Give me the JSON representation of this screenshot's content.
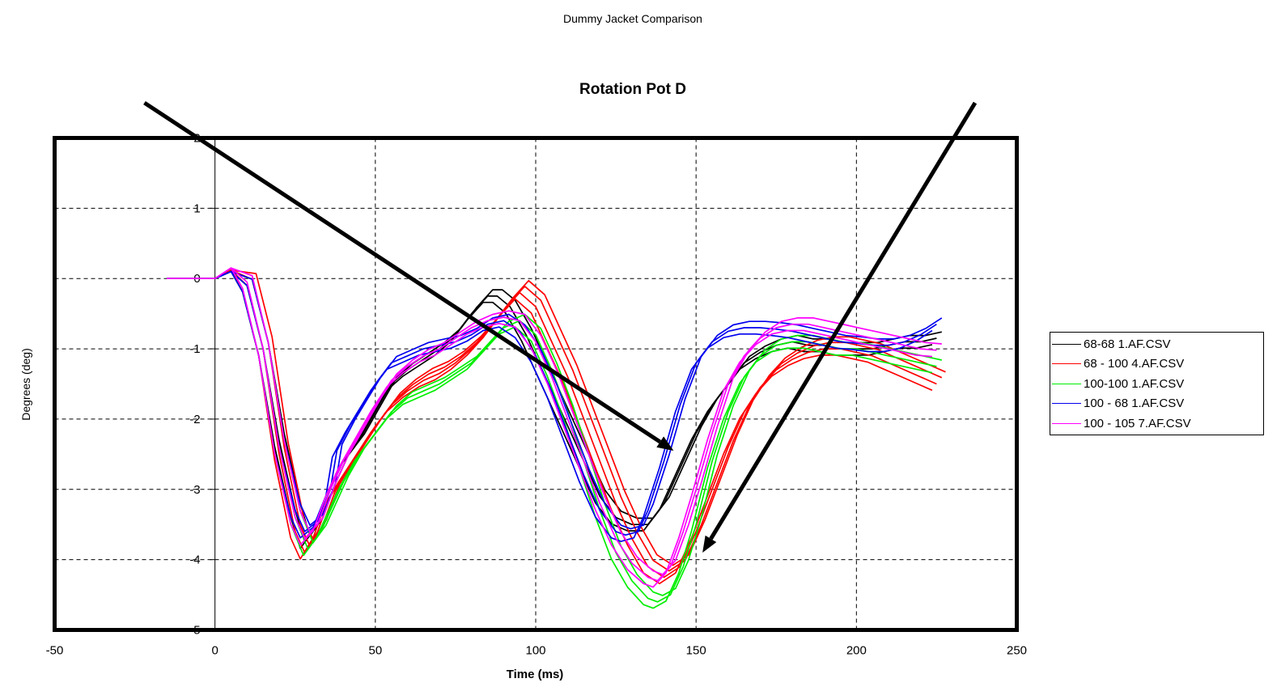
{
  "page_title": "Dummy Jacket Comparison",
  "chart_data": {
    "type": "line",
    "title": "Rotation Pot D",
    "xlabel": "Time (ms)",
    "ylabel": "Degrees (deg)",
    "xlim": [
      -50,
      250
    ],
    "ylim": [
      -5,
      2
    ],
    "xticks": [
      -50,
      0,
      50,
      100,
      150,
      200,
      250
    ],
    "yticks": [
      2,
      1,
      0,
      -1,
      -2,
      -3,
      -4,
      -5
    ],
    "grid": true,
    "legend_position": "right",
    "series": [
      {
        "name": "68-68 1.AF.CSV",
        "color": "#000000",
        "count": 3,
        "x": [
          -15,
          0,
          5,
          10,
          15,
          20,
          25,
          28,
          32,
          36,
          40,
          45,
          50,
          55,
          60,
          65,
          70,
          75,
          80,
          85,
          88,
          92,
          97,
          102,
          108,
          115,
          120,
          125,
          130,
          135,
          140,
          145,
          150,
          155,
          160,
          165,
          170,
          175,
          180,
          185,
          190,
          195,
          200,
          205,
          210,
          215,
          220,
          225
        ],
        "y": [
          0,
          0,
          0.1,
          -0.1,
          -1.0,
          -2.3,
          -3.3,
          -3.75,
          -3.5,
          -3.0,
          -2.6,
          -2.3,
          -1.9,
          -1.5,
          -1.3,
          -1.15,
          -1.0,
          -0.8,
          -0.5,
          -0.25,
          -0.25,
          -0.4,
          -0.8,
          -1.3,
          -1.9,
          -2.6,
          -3.1,
          -3.4,
          -3.5,
          -3.5,
          -3.2,
          -2.7,
          -2.2,
          -1.8,
          -1.5,
          -1.2,
          -1.05,
          -0.95,
          -0.9,
          -0.95,
          -0.95,
          -1.0,
          -1.0,
          -1.0,
          -0.95,
          -0.9,
          -0.9,
          -0.85
        ]
      },
      {
        "name": "68 - 100 4.AF.CSV",
        "color": "#ff0000",
        "count": 4,
        "x": [
          -15,
          0,
          5,
          10,
          15,
          20,
          25,
          28,
          32,
          36,
          40,
          45,
          50,
          55,
          60,
          65,
          70,
          75,
          80,
          85,
          90,
          95,
          100,
          105,
          110,
          115,
          120,
          125,
          130,
          135,
          140,
          145,
          150,
          155,
          160,
          165,
          170,
          175,
          180,
          185,
          190,
          195,
          200,
          205,
          210,
          215,
          220,
          225
        ],
        "y": [
          0,
          0,
          0.12,
          -0.1,
          -1.0,
          -2.5,
          -3.6,
          -3.9,
          -3.6,
          -3.1,
          -2.8,
          -2.45,
          -2.1,
          -1.8,
          -1.6,
          -1.45,
          -1.35,
          -1.2,
          -1.0,
          -0.75,
          -0.45,
          -0.2,
          -0.4,
          -0.9,
          -1.4,
          -2.0,
          -2.6,
          -3.2,
          -3.7,
          -4.1,
          -4.25,
          -4.1,
          -3.6,
          -3.0,
          -2.4,
          -1.9,
          -1.55,
          -1.3,
          -1.15,
          -1.05,
          -1.0,
          -1.0,
          -1.05,
          -1.1,
          -1.2,
          -1.3,
          -1.4,
          -1.5
        ]
      },
      {
        "name": "100-100 1.AF.CSV",
        "color": "#00ee00",
        "count": 3,
        "x": [
          -15,
          0,
          5,
          10,
          15,
          20,
          25,
          29,
          33,
          37,
          40,
          45,
          50,
          55,
          60,
          65,
          70,
          75,
          80,
          85,
          90,
          95,
          100,
          105,
          110,
          115,
          120,
          125,
          130,
          135,
          138,
          142,
          146,
          150,
          155,
          160,
          165,
          170,
          175,
          180,
          185,
          190,
          195,
          200,
          205,
          210,
          215,
          220,
          225
        ],
        "y": [
          0,
          0,
          0.1,
          -0.1,
          -1.0,
          -2.4,
          -3.4,
          -3.85,
          -3.6,
          -3.2,
          -2.9,
          -2.5,
          -2.2,
          -1.9,
          -1.7,
          -1.6,
          -1.5,
          -1.35,
          -1.2,
          -0.95,
          -0.7,
          -0.6,
          -0.8,
          -1.3,
          -1.9,
          -2.6,
          -3.3,
          -3.9,
          -4.3,
          -4.55,
          -4.6,
          -4.5,
          -4.1,
          -3.5,
          -2.6,
          -1.9,
          -1.4,
          -1.1,
          -0.95,
          -0.9,
          -0.9,
          -0.95,
          -1.0,
          -1.0,
          -1.05,
          -1.1,
          -1.15,
          -1.2,
          -1.25
        ]
      },
      {
        "name": "100 - 68 1.AF.CSV",
        "color": "#0000ee",
        "count": 3,
        "x": [
          -15,
          0,
          5,
          10,
          15,
          20,
          25,
          28,
          32,
          36,
          38,
          42,
          46,
          50,
          55,
          60,
          65,
          70,
          75,
          80,
          85,
          90,
          95,
          100,
          105,
          110,
          115,
          120,
          125,
          128,
          132,
          135,
          140,
          145,
          150,
          155,
          160,
          165,
          170,
          175,
          180,
          185,
          190,
          195,
          200,
          205,
          210,
          215,
          220,
          225
        ],
        "y": [
          0,
          0,
          0.1,
          -0.1,
          -1.0,
          -2.4,
          -3.3,
          -3.6,
          -3.45,
          -3.0,
          -2.45,
          -2.1,
          -1.8,
          -1.5,
          -1.2,
          -1.1,
          -1.0,
          -0.95,
          -0.9,
          -0.8,
          -0.65,
          -0.6,
          -0.75,
          -1.1,
          -1.6,
          -2.2,
          -2.8,
          -3.3,
          -3.6,
          -3.65,
          -3.6,
          -3.3,
          -2.6,
          -1.8,
          -1.2,
          -0.9,
          -0.75,
          -0.7,
          -0.7,
          -0.72,
          -0.75,
          -0.8,
          -0.85,
          -0.9,
          -0.92,
          -0.95,
          -0.95,
          -0.9,
          -0.8,
          -0.65
        ]
      },
      {
        "name": "100 - 105 7.AF.CSV",
        "color": "#ff00ff",
        "count": 3,
        "x": [
          -15,
          0,
          5,
          10,
          15,
          20,
          25,
          28,
          32,
          36,
          40,
          45,
          50,
          55,
          60,
          65,
          70,
          75,
          80,
          85,
          90,
          95,
          100,
          105,
          110,
          115,
          120,
          125,
          130,
          135,
          138,
          142,
          146,
          150,
          155,
          160,
          165,
          170,
          175,
          180,
          185,
          190,
          195,
          200,
          205,
          210,
          215,
          220,
          225
        ],
        "y": [
          0,
          0,
          0.15,
          -0.05,
          -1.0,
          -2.4,
          -3.4,
          -3.7,
          -3.5,
          -3.0,
          -2.6,
          -2.2,
          -1.8,
          -1.45,
          -1.25,
          -1.1,
          -1.0,
          -0.85,
          -0.7,
          -0.6,
          -0.55,
          -0.6,
          -0.9,
          -1.4,
          -2.0,
          -2.6,
          -3.2,
          -3.7,
          -4.05,
          -4.25,
          -4.3,
          -4.1,
          -3.6,
          -3.0,
          -2.2,
          -1.5,
          -1.1,
          -0.85,
          -0.7,
          -0.65,
          -0.65,
          -0.7,
          -0.75,
          -0.8,
          -0.85,
          -0.9,
          -0.95,
          -1.0,
          -1.02
        ]
      }
    ],
    "annotations": [
      {
        "type": "arrow",
        "from": [
          -22,
          2.5
        ],
        "to": [
          143,
          -2.45
        ]
      },
      {
        "type": "arrow",
        "from": [
          237,
          2.5
        ],
        "to": [
          152,
          -3.9
        ]
      }
    ]
  }
}
